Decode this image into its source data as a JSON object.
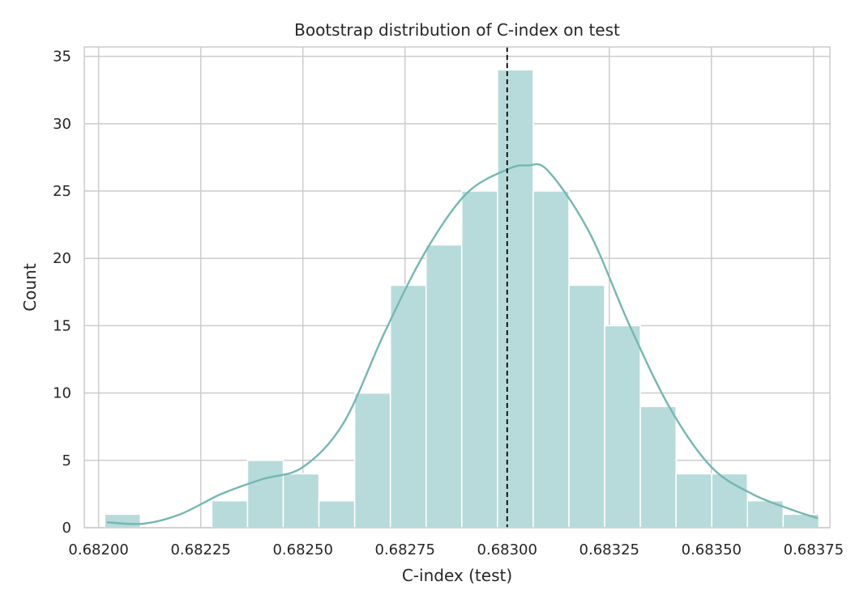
{
  "chart_data": {
    "type": "bar",
    "title": "Bootstrap distribution of C-index on test",
    "xlabel": "C-index (test)",
    "ylabel": "Count",
    "xlim": [
      0.681965,
      0.68379
    ],
    "ylim": [
      0,
      35.7
    ],
    "xticks": [
      "0.68200",
      "0.68225",
      "0.68250",
      "0.68275",
      "0.68300",
      "0.68325",
      "0.68350",
      "0.68375"
    ],
    "yticks": [
      "0",
      "5",
      "10",
      "15",
      "20",
      "25",
      "30",
      "35"
    ],
    "grid": true,
    "bins": {
      "start": 0.682015,
      "width": 8.74e-05,
      "counts": [
        1,
        0,
        0,
        2,
        5,
        4,
        2,
        10,
        18,
        21,
        25,
        34,
        25,
        18,
        15,
        9,
        4,
        4,
        2,
        1
      ]
    },
    "kde": {
      "x": [
        0.68202,
        0.68211,
        0.6822,
        0.6823,
        0.6824,
        0.6825,
        0.6826,
        0.6827,
        0.6828,
        0.6829,
        0.683,
        0.68305,
        0.6831,
        0.6832,
        0.6833,
        0.6834,
        0.6835,
        0.6836,
        0.6837,
        0.68376
      ],
      "y": [
        0.4,
        0.3,
        1.0,
        2.5,
        3.6,
        4.5,
        7.8,
        14.5,
        20.5,
        24.8,
        26.6,
        26.9,
        26.5,
        22.0,
        15.0,
        8.8,
        4.5,
        2.5,
        1.3,
        0.7
      ]
    },
    "reference_line": {
      "x": 0.683,
      "style": "dashed"
    },
    "colors": {
      "bar": "#b7dbda",
      "kde": "#74b7b2",
      "grid": "#cccccc",
      "ref": "#000000"
    }
  }
}
